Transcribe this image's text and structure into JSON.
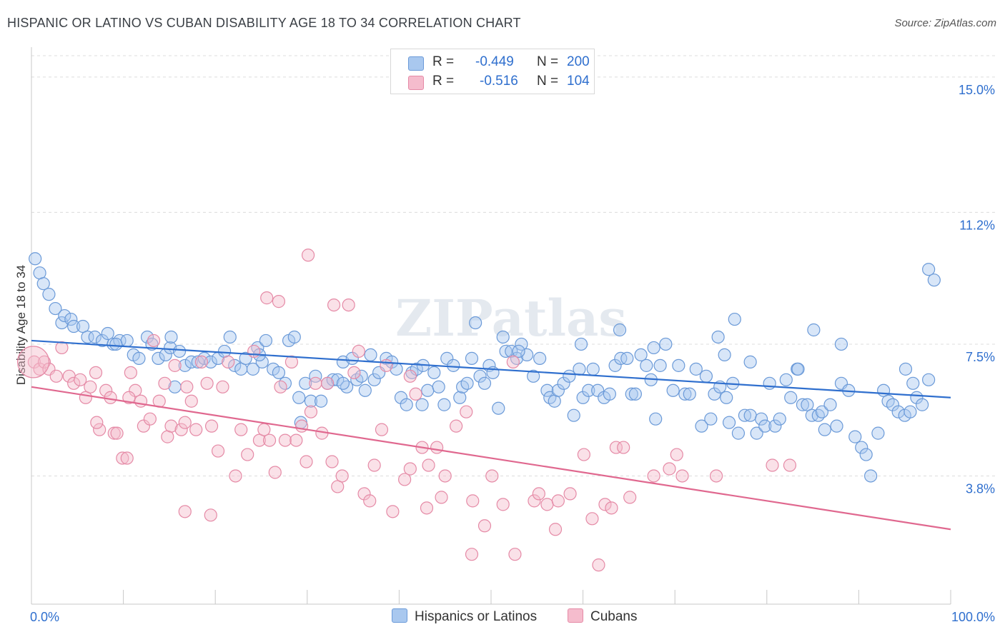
{
  "header": {
    "title": "HISPANIC OR LATINO VS CUBAN DISABILITY AGE 18 TO 34 CORRELATION CHART",
    "source": "Source: ZipAtlas.com"
  },
  "legend": {
    "rows": [
      {
        "r_label": "R =",
        "r_value": "-0.449",
        "n_label": "N =",
        "n_value": "200"
      },
      {
        "r_label": "R =",
        "r_value": "-0.516",
        "n_label": "N =",
        "n_value": "104"
      }
    ]
  },
  "bottom_legend": [
    "Hispanics or Latinos",
    "Cubans"
  ],
  "watermark": "ZIPatlas",
  "colors": {
    "blue_fill": "#a9c8ef",
    "blue_stroke": "#6b9ad8",
    "blue_line": "#2f6fce",
    "pink_fill": "#f5bccd",
    "pink_stroke": "#e58aa6",
    "pink_line": "#e0688f",
    "axis_text": "#2f6fce",
    "grid": "#dcdcdc"
  },
  "chart_data": {
    "type": "scatter",
    "title": "HISPANIC OR LATINO VS CUBAN DISABILITY AGE 18 TO 34 CORRELATION CHART",
    "xlabel": "",
    "ylabel": "Disability Age 18 to 34",
    "xlim": [
      0,
      100
    ],
    "ylim": [
      0.2,
      15.6
    ],
    "x_tick_labels": [
      "0.0%",
      "100.0%"
    ],
    "y_ticks": [
      3.8,
      7.5,
      11.2,
      15.0
    ],
    "y_tick_labels": [
      "3.8%",
      "7.5%",
      "11.2%",
      "15.0%"
    ],
    "grid": "horizontal dashed",
    "legend_position": "top-center",
    "series": [
      {
        "name": "Hispanics or Latinos",
        "r": -0.449,
        "n": 200,
        "trend": [
          [
            0,
            7.6
          ],
          [
            100,
            6.0
          ]
        ],
        "points": [
          [
            0.4,
            9.9
          ],
          [
            0.9,
            9.5
          ],
          [
            1.3,
            9.2
          ],
          [
            1.9,
            8.9
          ],
          [
            2.6,
            8.5
          ],
          [
            3.3,
            8.1
          ],
          [
            3.6,
            8.3
          ],
          [
            4.3,
            8.2
          ],
          [
            4.6,
            8.0
          ],
          [
            5.6,
            8.0
          ],
          [
            6.1,
            7.7
          ],
          [
            6.9,
            7.7
          ],
          [
            7.7,
            7.6
          ],
          [
            8.3,
            7.8
          ],
          [
            8.9,
            7.5
          ],
          [
            9.6,
            7.6
          ],
          [
            10.4,
            7.6
          ],
          [
            11.1,
            7.2
          ],
          [
            11.7,
            7.1
          ],
          [
            12.6,
            7.7
          ],
          [
            13.1,
            7.5
          ],
          [
            13.8,
            7.1
          ],
          [
            14.6,
            7.2
          ],
          [
            15.1,
            7.4
          ],
          [
            15.6,
            6.3
          ],
          [
            16.1,
            7.3
          ],
          [
            16.7,
            6.9
          ],
          [
            17.4,
            7.0
          ],
          [
            18.1,
            7.0
          ],
          [
            18.8,
            7.1
          ],
          [
            19.5,
            7.0
          ],
          [
            20.3,
            7.1
          ],
          [
            21.0,
            7.3
          ],
          [
            21.6,
            7.7
          ],
          [
            22.1,
            6.9
          ],
          [
            22.8,
            6.8
          ],
          [
            23.3,
            7.1
          ],
          [
            24.1,
            6.8
          ],
          [
            24.6,
            7.4
          ],
          [
            25.1,
            7.0
          ],
          [
            25.5,
            7.6
          ],
          [
            26.3,
            6.8
          ],
          [
            26.9,
            6.7
          ],
          [
            27.6,
            6.4
          ],
          [
            28.0,
            7.6
          ],
          [
            28.6,
            7.7
          ],
          [
            29.1,
            6.0
          ],
          [
            29.3,
            5.3
          ],
          [
            29.8,
            6.4
          ],
          [
            30.4,
            5.9
          ],
          [
            30.9,
            6.6
          ],
          [
            31.5,
            5.9
          ],
          [
            32.2,
            6.4
          ],
          [
            32.8,
            6.5
          ],
          [
            33.3,
            6.5
          ],
          [
            33.9,
            7.0
          ],
          [
            34.3,
            6.3
          ],
          [
            34.9,
            7.1
          ],
          [
            35.4,
            6.5
          ],
          [
            35.9,
            6.6
          ],
          [
            36.3,
            6.2
          ],
          [
            36.9,
            7.2
          ],
          [
            37.3,
            6.5
          ],
          [
            37.8,
            6.7
          ],
          [
            38.6,
            7.1
          ],
          [
            39.2,
            7.0
          ],
          [
            39.7,
            6.8
          ],
          [
            40.2,
            6.0
          ],
          [
            40.8,
            5.8
          ],
          [
            41.4,
            6.7
          ],
          [
            41.9,
            6.8
          ],
          [
            42.5,
            5.8
          ],
          [
            43.1,
            6.2
          ],
          [
            43.8,
            6.7
          ],
          [
            44.3,
            6.3
          ],
          [
            44.9,
            5.8
          ],
          [
            45.2,
            7.1
          ],
          [
            45.9,
            6.9
          ],
          [
            46.6,
            6.0
          ],
          [
            46.9,
            6.3
          ],
          [
            47.4,
            6.4
          ],
          [
            47.9,
            7.1
          ],
          [
            48.3,
            8.1
          ],
          [
            48.8,
            6.6
          ],
          [
            49.3,
            6.4
          ],
          [
            49.8,
            6.9
          ],
          [
            50.2,
            6.7
          ],
          [
            50.8,
            5.7
          ],
          [
            51.3,
            7.7
          ],
          [
            51.6,
            7.3
          ],
          [
            52.2,
            7.3
          ],
          [
            52.8,
            7.1
          ],
          [
            53.3,
            7.5
          ],
          [
            53.9,
            7.2
          ],
          [
            54.6,
            6.6
          ],
          [
            55.3,
            7.1
          ],
          [
            56.1,
            6.2
          ],
          [
            56.4,
            6.0
          ],
          [
            56.9,
            5.9
          ],
          [
            57.3,
            6.2
          ],
          [
            57.9,
            6.4
          ],
          [
            58.5,
            6.6
          ],
          [
            59.0,
            5.5
          ],
          [
            59.6,
            6.8
          ],
          [
            60.0,
            6.0
          ],
          [
            60.6,
            6.2
          ],
          [
            61.1,
            6.8
          ],
          [
            61.6,
            6.2
          ],
          [
            62.3,
            6.0
          ],
          [
            62.9,
            6.1
          ],
          [
            63.5,
            6.9
          ],
          [
            64.1,
            7.1
          ],
          [
            64.8,
            7.1
          ],
          [
            65.3,
            6.1
          ],
          [
            65.7,
            6.1
          ],
          [
            66.3,
            7.2
          ],
          [
            66.9,
            6.9
          ],
          [
            67.4,
            6.5
          ],
          [
            67.9,
            5.4
          ],
          [
            68.4,
            6.9
          ],
          [
            69.0,
            7.5
          ],
          [
            69.8,
            6.2
          ],
          [
            70.4,
            6.9
          ],
          [
            71.1,
            6.1
          ],
          [
            71.6,
            6.1
          ],
          [
            72.3,
            6.8
          ],
          [
            72.9,
            5.2
          ],
          [
            73.4,
            6.6
          ],
          [
            73.9,
            5.4
          ],
          [
            74.3,
            6.1
          ],
          [
            74.9,
            6.3
          ],
          [
            75.6,
            6.0
          ],
          [
            75.9,
            5.3
          ],
          [
            76.3,
            6.4
          ],
          [
            76.9,
            5.0
          ],
          [
            77.6,
            5.5
          ],
          [
            78.2,
            5.5
          ],
          [
            78.9,
            5.0
          ],
          [
            79.4,
            5.4
          ],
          [
            79.8,
            5.2
          ],
          [
            80.3,
            6.4
          ],
          [
            80.9,
            5.2
          ],
          [
            81.4,
            5.4
          ],
          [
            82.1,
            6.5
          ],
          [
            82.6,
            6.0
          ],
          [
            83.3,
            6.8
          ],
          [
            83.9,
            5.8
          ],
          [
            84.4,
            5.8
          ],
          [
            84.9,
            5.5
          ],
          [
            85.6,
            5.5
          ],
          [
            86.0,
            5.6
          ],
          [
            86.3,
            5.1
          ],
          [
            86.9,
            5.8
          ],
          [
            87.6,
            5.2
          ],
          [
            88.1,
            6.4
          ],
          [
            88.9,
            6.2
          ],
          [
            89.6,
            4.9
          ],
          [
            90.3,
            4.6
          ],
          [
            90.8,
            4.4
          ],
          [
            91.3,
            3.8
          ],
          [
            92.1,
            5.0
          ],
          [
            92.7,
            6.2
          ],
          [
            93.2,
            5.9
          ],
          [
            93.7,
            5.8
          ],
          [
            94.3,
            5.6
          ],
          [
            95.0,
            5.5
          ],
          [
            95.6,
            5.6
          ],
          [
            96.3,
            6.0
          ],
          [
            96.9,
            5.8
          ],
          [
            97.6,
            6.5
          ],
          [
            9.2,
            7.5
          ],
          [
            15.2,
            7.7
          ],
          [
            24.8,
            7.2
          ],
          [
            33.9,
            6.4
          ],
          [
            42.6,
            6.9
          ],
          [
            53.0,
            7.3
          ],
          [
            59.8,
            7.5
          ],
          [
            64.0,
            7.9
          ],
          [
            67.7,
            7.4
          ],
          [
            74.7,
            7.7
          ],
          [
            75.4,
            7.2
          ],
          [
            76.5,
            8.2
          ],
          [
            78.2,
            7.0
          ],
          [
            83.4,
            6.8
          ],
          [
            85.1,
            7.9
          ],
          [
            88.1,
            7.5
          ],
          [
            95.1,
            6.8
          ],
          [
            95.9,
            6.4
          ],
          [
            97.6,
            9.6
          ],
          [
            98.2,
            9.3
          ]
        ]
      },
      {
        "name": "Cubans",
        "r": -0.516,
        "n": 104,
        "trend": [
          [
            0,
            6.3
          ],
          [
            100,
            2.3
          ]
        ],
        "points": [
          [
            0.3,
            7.0
          ],
          [
            0.9,
            6.8
          ],
          [
            1.4,
            7.0
          ],
          [
            1.9,
            6.8
          ],
          [
            2.7,
            6.6
          ],
          [
            3.3,
            7.4
          ],
          [
            4.1,
            6.6
          ],
          [
            4.6,
            6.4
          ],
          [
            5.3,
            6.5
          ],
          [
            5.9,
            6.0
          ],
          [
            6.4,
            6.3
          ],
          [
            7.0,
            6.7
          ],
          [
            7.4,
            5.1
          ],
          [
            8.1,
            6.2
          ],
          [
            8.6,
            6.0
          ],
          [
            9.0,
            5.0
          ],
          [
            9.3,
            5.0
          ],
          [
            9.9,
            4.3
          ],
          [
            10.4,
            4.3
          ],
          [
            10.8,
            6.7
          ],
          [
            11.3,
            6.2
          ],
          [
            11.9,
            5.9
          ],
          [
            12.2,
            5.2
          ],
          [
            12.9,
            5.4
          ],
          [
            13.3,
            7.6
          ],
          [
            13.9,
            5.9
          ],
          [
            14.5,
            6.4
          ],
          [
            14.8,
            4.9
          ],
          [
            15.2,
            5.2
          ],
          [
            15.6,
            6.9
          ],
          [
            16.3,
            5.1
          ],
          [
            16.9,
            6.3
          ],
          [
            17.4,
            5.9
          ],
          [
            17.9,
            5.1
          ],
          [
            18.5,
            7.0
          ],
          [
            19.1,
            6.4
          ],
          [
            19.6,
            5.2
          ],
          [
            20.3,
            4.5
          ],
          [
            20.8,
            6.3
          ],
          [
            21.4,
            7.0
          ],
          [
            22.2,
            3.8
          ],
          [
            22.8,
            5.1
          ],
          [
            23.5,
            4.4
          ],
          [
            24.2,
            7.3
          ],
          [
            24.8,
            4.8
          ],
          [
            25.3,
            5.1
          ],
          [
            25.9,
            4.8
          ],
          [
            26.5,
            3.9
          ],
          [
            27.1,
            6.3
          ],
          [
            27.6,
            4.8
          ],
          [
            28.3,
            7.0
          ],
          [
            28.8,
            4.8
          ],
          [
            29.4,
            5.2
          ],
          [
            29.9,
            4.2
          ],
          [
            30.4,
            5.6
          ],
          [
            30.9,
            6.4
          ],
          [
            31.6,
            5.0
          ],
          [
            32.2,
            6.4
          ],
          [
            32.7,
            4.2
          ],
          [
            33.3,
            3.5
          ],
          [
            33.8,
            3.8
          ],
          [
            34.5,
            8.6
          ],
          [
            35.1,
            6.7
          ],
          [
            35.6,
            7.3
          ],
          [
            36.2,
            3.3
          ],
          [
            36.8,
            3.1
          ],
          [
            37.3,
            4.1
          ],
          [
            38.1,
            5.1
          ],
          [
            38.6,
            6.9
          ],
          [
            39.3,
            2.8
          ],
          [
            40.6,
            3.7
          ],
          [
            41.2,
            4.0
          ],
          [
            41.8,
            6.1
          ],
          [
            42.5,
            4.6
          ],
          [
            43.2,
            4.1
          ],
          [
            44.1,
            4.6
          ],
          [
            45.0,
            3.8
          ],
          [
            46.2,
            5.2
          ],
          [
            47.3,
            5.6
          ],
          [
            48.0,
            3.1
          ],
          [
            49.3,
            2.4
          ],
          [
            50.1,
            3.8
          ],
          [
            51.3,
            3.0
          ],
          [
            52.4,
            7.0
          ],
          [
            54.7,
            3.1
          ],
          [
            55.2,
            3.3
          ],
          [
            56.1,
            3.0
          ],
          [
            57.3,
            3.1
          ],
          [
            58.6,
            3.3
          ],
          [
            60.1,
            4.4
          ],
          [
            61.0,
            2.6
          ],
          [
            61.7,
            1.3
          ],
          [
            62.4,
            3.0
          ],
          [
            63.1,
            2.9
          ],
          [
            63.6,
            4.6
          ],
          [
            64.4,
            4.6
          ],
          [
            65.1,
            3.2
          ],
          [
            67.7,
            3.8
          ],
          [
            69.4,
            4.0
          ],
          [
            70.2,
            4.4
          ],
          [
            70.8,
            3.8
          ],
          [
            74.5,
            3.8
          ],
          [
            80.6,
            4.1
          ],
          [
            82.5,
            4.1
          ]
        ]
      }
    ],
    "extra_pink": [
      [
        7.1,
        5.3
      ],
      [
        10.6,
        6.0
      ],
      [
        16.7,
        5.3
      ],
      [
        16.7,
        2.8
      ],
      [
        19.5,
        2.7
      ],
      [
        25.6,
        8.8
      ],
      [
        26.9,
        8.7
      ],
      [
        30.1,
        10.0
      ],
      [
        32.9,
        8.6
      ],
      [
        41.2,
        6.6
      ],
      [
        43.0,
        2.9
      ],
      [
        44.6,
        3.2
      ],
      [
        47.9,
        1.6
      ],
      [
        52.6,
        1.6
      ],
      [
        57.0,
        2.3
      ]
    ]
  }
}
